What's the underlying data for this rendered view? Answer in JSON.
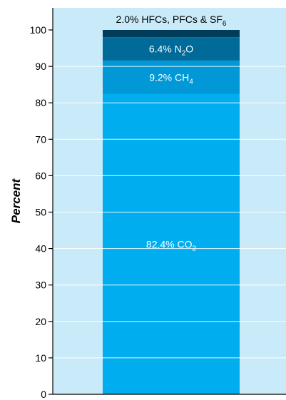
{
  "chart_data": {
    "type": "bar",
    "stacked": true,
    "orientation": "vertical",
    "ylabel": "Percent",
    "xlabel": "",
    "ylim": [
      0,
      100
    ],
    "yticks": [
      "0",
      "10",
      "20",
      "30",
      "40",
      "50",
      "60",
      "70",
      "80",
      "90",
      "100"
    ],
    "grid": true,
    "series": [
      {
        "label_text": "82.4% CO",
        "subscript": "2",
        "label_suffix": "",
        "value": 82.4,
        "color": "#00aeef"
      },
      {
        "label_text": "9.2% CH",
        "subscript": "4",
        "label_suffix": "",
        "value": 9.2,
        "color": "#0098d6"
      },
      {
        "label_text": "6.4% N",
        "subscript": "2",
        "label_suffix": "O",
        "value": 6.4,
        "color": "#006a98"
      },
      {
        "label_text": "2.0% HFCs, PFCs & SF",
        "subscript": "6",
        "label_suffix": "",
        "value": 2.0,
        "color": "#003d5b"
      }
    ],
    "plot_background": "#c9eaf9",
    "gridline_color": "#ffffff"
  }
}
